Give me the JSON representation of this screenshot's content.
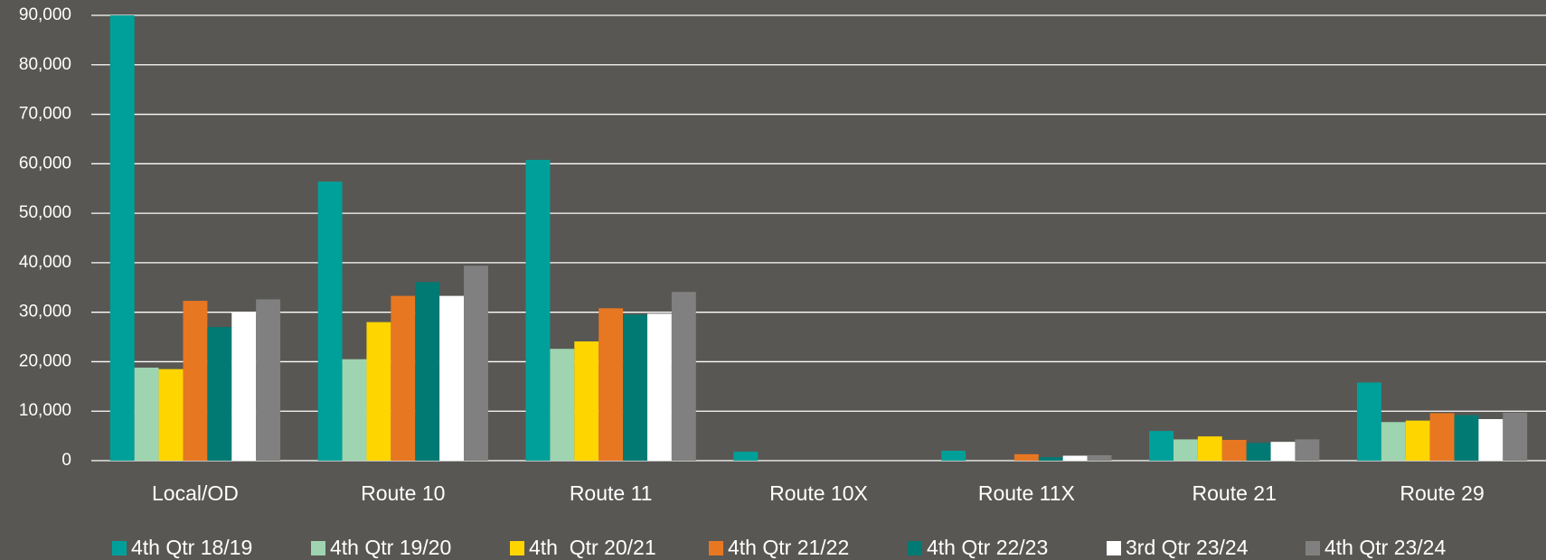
{
  "chart_data": {
    "type": "bar",
    "categories": [
      "Local/OD",
      "Route 10",
      "Route 11",
      "Route 10X",
      "Route 11X",
      "Route 21",
      "Route 29"
    ],
    "series": [
      {
        "name": "4th Qtr 18/19",
        "color": "#00A09A",
        "values": [
          90000,
          56400,
          60800,
          1800,
          2000,
          6000,
          15800
        ]
      },
      {
        "name": "4th Qtr 19/20",
        "color": "#9ED4B0",
        "values": [
          18800,
          20500,
          22600,
          0,
          0,
          4300,
          7800
        ]
      },
      {
        "name": "4th  Qtr 20/21",
        "color": "#FFD500",
        "values": [
          18500,
          28000,
          24100,
          0,
          0,
          4900,
          8100
        ]
      },
      {
        "name": "4th Qtr 21/22",
        "color": "#E87722",
        "values": [
          32300,
          33300,
          30800,
          0,
          1300,
          4200,
          9600
        ]
      },
      {
        "name": "4th Qtr 22/23",
        "color": "#007A73",
        "values": [
          27000,
          36100,
          29500,
          0,
          700,
          3600,
          9200
        ]
      },
      {
        "name": "3rd Qtr 23/24",
        "color": "#FFFFFF",
        "values": [
          30000,
          33300,
          29700,
          0,
          1000,
          3800,
          8400
        ]
      },
      {
        "name": "4th Qtr 23/24",
        "color": "#808080",
        "values": [
          32600,
          39400,
          34100,
          0,
          1100,
          4300,
          9700
        ]
      }
    ],
    "ylim": [
      0,
      90000
    ],
    "yticks": [
      0,
      {
        "value": 10000,
        "label": "10,000"
      },
      {
        "value": 20000,
        "label": "20,000"
      },
      {
        "value": 30000,
        "label": "30,000"
      },
      {
        "value": 40000,
        "label": "40,000"
      },
      {
        "value": 50000,
        "label": "50,000"
      },
      {
        "value": 60000,
        "label": "60,000"
      },
      {
        "value": 70000,
        "label": "70,000"
      },
      {
        "value": 80000,
        "label": "80,000"
      },
      {
        "value": 90000,
        "label": "90,000"
      }
    ],
    "grid": true,
    "legend": "bottom"
  }
}
